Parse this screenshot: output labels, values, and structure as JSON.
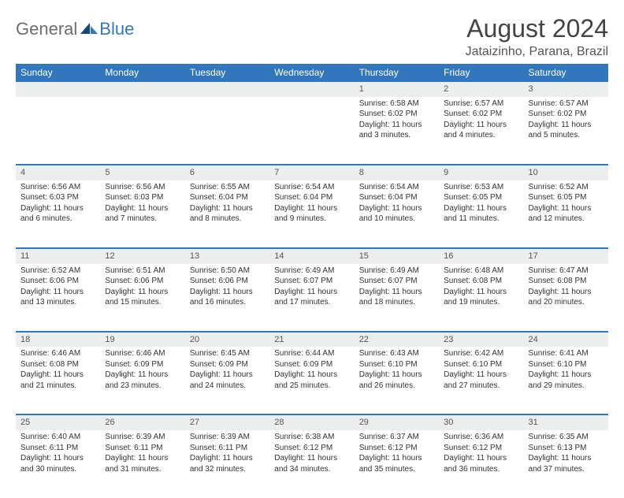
{
  "logo": {
    "textGeneral": "General",
    "textBlue": "Blue"
  },
  "header": {
    "monthTitle": "August 2024",
    "location": "Jataizinho, Parana, Brazil"
  },
  "colors": {
    "headerBlue": "#3277bd",
    "dayBarGrey": "#eceded",
    "pageBg": "#ffffff",
    "text": "#333333"
  },
  "weekdays": [
    "Sunday",
    "Monday",
    "Tuesday",
    "Wednesday",
    "Thursday",
    "Friday",
    "Saturday"
  ],
  "weeks": [
    {
      "nums": [
        "",
        "",
        "",
        "",
        "1",
        "2",
        "3"
      ],
      "cells": [
        null,
        null,
        null,
        null,
        {
          "sunrise": "Sunrise: 6:58 AM",
          "sunset": "Sunset: 6:02 PM",
          "daylight": "Daylight: 11 hours and 3 minutes."
        },
        {
          "sunrise": "Sunrise: 6:57 AM",
          "sunset": "Sunset: 6:02 PM",
          "daylight": "Daylight: 11 hours and 4 minutes."
        },
        {
          "sunrise": "Sunrise: 6:57 AM",
          "sunset": "Sunset: 6:02 PM",
          "daylight": "Daylight: 11 hours and 5 minutes."
        }
      ]
    },
    {
      "nums": [
        "4",
        "5",
        "6",
        "7",
        "8",
        "9",
        "10"
      ],
      "cells": [
        {
          "sunrise": "Sunrise: 6:56 AM",
          "sunset": "Sunset: 6:03 PM",
          "daylight": "Daylight: 11 hours and 6 minutes."
        },
        {
          "sunrise": "Sunrise: 6:56 AM",
          "sunset": "Sunset: 6:03 PM",
          "daylight": "Daylight: 11 hours and 7 minutes."
        },
        {
          "sunrise": "Sunrise: 6:55 AM",
          "sunset": "Sunset: 6:04 PM",
          "daylight": "Daylight: 11 hours and 8 minutes."
        },
        {
          "sunrise": "Sunrise: 6:54 AM",
          "sunset": "Sunset: 6:04 PM",
          "daylight": "Daylight: 11 hours and 9 minutes."
        },
        {
          "sunrise": "Sunrise: 6:54 AM",
          "sunset": "Sunset: 6:04 PM",
          "daylight": "Daylight: 11 hours and 10 minutes."
        },
        {
          "sunrise": "Sunrise: 6:53 AM",
          "sunset": "Sunset: 6:05 PM",
          "daylight": "Daylight: 11 hours and 11 minutes."
        },
        {
          "sunrise": "Sunrise: 6:52 AM",
          "sunset": "Sunset: 6:05 PM",
          "daylight": "Daylight: 11 hours and 12 minutes."
        }
      ]
    },
    {
      "nums": [
        "11",
        "12",
        "13",
        "14",
        "15",
        "16",
        "17"
      ],
      "cells": [
        {
          "sunrise": "Sunrise: 6:52 AM",
          "sunset": "Sunset: 6:06 PM",
          "daylight": "Daylight: 11 hours and 13 minutes."
        },
        {
          "sunrise": "Sunrise: 6:51 AM",
          "sunset": "Sunset: 6:06 PM",
          "daylight": "Daylight: 11 hours and 15 minutes."
        },
        {
          "sunrise": "Sunrise: 6:50 AM",
          "sunset": "Sunset: 6:06 PM",
          "daylight": "Daylight: 11 hours and 16 minutes."
        },
        {
          "sunrise": "Sunrise: 6:49 AM",
          "sunset": "Sunset: 6:07 PM",
          "daylight": "Daylight: 11 hours and 17 minutes."
        },
        {
          "sunrise": "Sunrise: 6:49 AM",
          "sunset": "Sunset: 6:07 PM",
          "daylight": "Daylight: 11 hours and 18 minutes."
        },
        {
          "sunrise": "Sunrise: 6:48 AM",
          "sunset": "Sunset: 6:08 PM",
          "daylight": "Daylight: 11 hours and 19 minutes."
        },
        {
          "sunrise": "Sunrise: 6:47 AM",
          "sunset": "Sunset: 6:08 PM",
          "daylight": "Daylight: 11 hours and 20 minutes."
        }
      ]
    },
    {
      "nums": [
        "18",
        "19",
        "20",
        "21",
        "22",
        "23",
        "24"
      ],
      "cells": [
        {
          "sunrise": "Sunrise: 6:46 AM",
          "sunset": "Sunset: 6:08 PM",
          "daylight": "Daylight: 11 hours and 21 minutes."
        },
        {
          "sunrise": "Sunrise: 6:46 AM",
          "sunset": "Sunset: 6:09 PM",
          "daylight": "Daylight: 11 hours and 23 minutes."
        },
        {
          "sunrise": "Sunrise: 6:45 AM",
          "sunset": "Sunset: 6:09 PM",
          "daylight": "Daylight: 11 hours and 24 minutes."
        },
        {
          "sunrise": "Sunrise: 6:44 AM",
          "sunset": "Sunset: 6:09 PM",
          "daylight": "Daylight: 11 hours and 25 minutes."
        },
        {
          "sunrise": "Sunrise: 6:43 AM",
          "sunset": "Sunset: 6:10 PM",
          "daylight": "Daylight: 11 hours and 26 minutes."
        },
        {
          "sunrise": "Sunrise: 6:42 AM",
          "sunset": "Sunset: 6:10 PM",
          "daylight": "Daylight: 11 hours and 27 minutes."
        },
        {
          "sunrise": "Sunrise: 6:41 AM",
          "sunset": "Sunset: 6:10 PM",
          "daylight": "Daylight: 11 hours and 29 minutes."
        }
      ]
    },
    {
      "nums": [
        "25",
        "26",
        "27",
        "28",
        "29",
        "30",
        "31"
      ],
      "cells": [
        {
          "sunrise": "Sunrise: 6:40 AM",
          "sunset": "Sunset: 6:11 PM",
          "daylight": "Daylight: 11 hours and 30 minutes."
        },
        {
          "sunrise": "Sunrise: 6:39 AM",
          "sunset": "Sunset: 6:11 PM",
          "daylight": "Daylight: 11 hours and 31 minutes."
        },
        {
          "sunrise": "Sunrise: 6:39 AM",
          "sunset": "Sunset: 6:11 PM",
          "daylight": "Daylight: 11 hours and 32 minutes."
        },
        {
          "sunrise": "Sunrise: 6:38 AM",
          "sunset": "Sunset: 6:12 PM",
          "daylight": "Daylight: 11 hours and 34 minutes."
        },
        {
          "sunrise": "Sunrise: 6:37 AM",
          "sunset": "Sunset: 6:12 PM",
          "daylight": "Daylight: 11 hours and 35 minutes."
        },
        {
          "sunrise": "Sunrise: 6:36 AM",
          "sunset": "Sunset: 6:12 PM",
          "daylight": "Daylight: 11 hours and 36 minutes."
        },
        {
          "sunrise": "Sunrise: 6:35 AM",
          "sunset": "Sunset: 6:13 PM",
          "daylight": "Daylight: 11 hours and 37 minutes."
        }
      ]
    }
  ]
}
